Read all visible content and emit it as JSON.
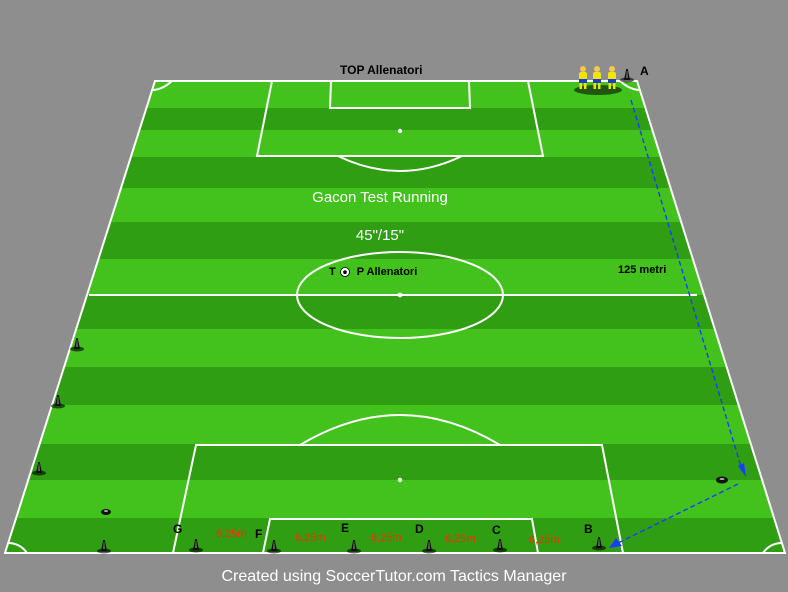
{
  "header": {
    "title": "TOP  Allenatori"
  },
  "drill": {
    "name": "Gacon Test Running",
    "interval": "45\"/15\""
  },
  "center_label": {
    "t": "T",
    "rest": "P  Allenatori"
  },
  "distance": {
    "label": "125 metri"
  },
  "cones": {
    "a": "A",
    "b": "B",
    "c": "C",
    "d": "D",
    "e": "E",
    "f": "F",
    "g": "G"
  },
  "segments": {
    "fg": "6,25m",
    "ef": "6,25m",
    "de": "6,25m",
    "cd": "6,25m",
    "bc": "6,25m"
  },
  "footer": {
    "text": "Created using SoccerTutor.com Tactics Manager"
  },
  "colors": {
    "stripe_light": "#43c21d",
    "stripe_dark": "#2f9e12",
    "line": "#ffffff",
    "arrow": "#1a3cff",
    "segment_text": "#ff2a00"
  }
}
